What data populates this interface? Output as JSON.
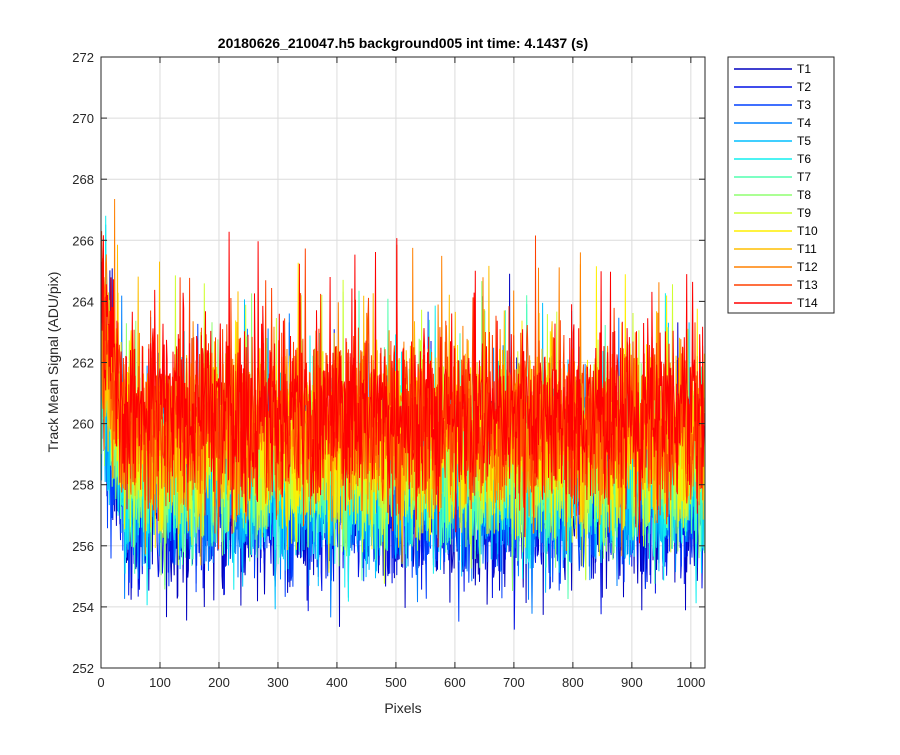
{
  "chart_data": {
    "type": "line",
    "title": "20180626_210047.h5  background005   int time: 4.1437 (s)",
    "xlabel": "Pixels",
    "ylabel": "Track Mean Signal (ADU/pix)",
    "xlim": [
      0,
      1024
    ],
    "ylim": [
      252,
      272
    ],
    "xticks": [
      0,
      100,
      200,
      300,
      400,
      500,
      600,
      700,
      800,
      900,
      1000
    ],
    "yticks": [
      252,
      254,
      256,
      258,
      260,
      262,
      264,
      266,
      268,
      270,
      272
    ],
    "grid": true,
    "legend_position": "outside-right",
    "n_points_per_series": 1024,
    "series": [
      {
        "name": "T1",
        "color": "#0000bf",
        "mean": 257.4,
        "noise_sd": 1.5
      },
      {
        "name": "T2",
        "color": "#0010e6",
        "mean": 257.6,
        "noise_sd": 1.4
      },
      {
        "name": "T3",
        "color": "#0040ff",
        "mean": 257.8,
        "noise_sd": 1.4
      },
      {
        "name": "T4",
        "color": "#0080ff",
        "mean": 258.0,
        "noise_sd": 1.4
      },
      {
        "name": "T5",
        "color": "#00bfff",
        "mean": 258.2,
        "noise_sd": 1.4
      },
      {
        "name": "T6",
        "color": "#10efef",
        "mean": 258.4,
        "noise_sd": 1.4
      },
      {
        "name": "T7",
        "color": "#50ffaf",
        "mean": 258.6,
        "noise_sd": 1.4
      },
      {
        "name": "T8",
        "color": "#8fff70",
        "mean": 258.8,
        "noise_sd": 1.4
      },
      {
        "name": "T9",
        "color": "#cfff30",
        "mean": 259.1,
        "noise_sd": 1.4
      },
      {
        "name": "T10",
        "color": "#ffef00",
        "mean": 259.4,
        "noise_sd": 1.4
      },
      {
        "name": "T11",
        "color": "#ffbf00",
        "mean": 259.7,
        "noise_sd": 1.4
      },
      {
        "name": "T12",
        "color": "#ff8000",
        "mean": 260.0,
        "noise_sd": 1.4
      },
      {
        "name": "T13",
        "color": "#ff4000",
        "mean": 260.2,
        "noise_sd": 1.5
      },
      {
        "name": "T14",
        "color": "#ff0000",
        "mean": 260.4,
        "noise_sd": 1.5
      }
    ]
  }
}
